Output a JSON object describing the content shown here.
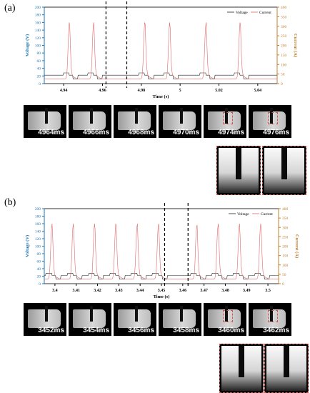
{
  "panels": [
    {
      "label": "(a)",
      "chart_data": {
        "type": "line",
        "xlabel": "Time (s)",
        "ylabel_left": "Voltage (V)",
        "ylabel_right": "Current (A)",
        "xlim": [
          4.93,
          5.05
        ],
        "ylim_left": [
          0,
          200
        ],
        "ylim_right": [
          0,
          400
        ],
        "x_ticks": [
          "4.94",
          "4.96",
          "4.98",
          "5",
          "5.02",
          "5.04"
        ],
        "y_left_ticks": [
          "0",
          "20",
          "40",
          "60",
          "80",
          "100",
          "120",
          "140",
          "160",
          "180",
          "200"
        ],
        "y_right_ticks": [
          "0",
          "50",
          "100",
          "150",
          "200",
          "250",
          "300",
          "350",
          "400"
        ],
        "legend": [
          "Voltage",
          "Current"
        ],
        "legend_position": "top-right",
        "marker_lines": [
          4.9618,
          4.9725
        ],
        "peaks": [
          4.9428,
          4.9553,
          4.9817,
          4.9945,
          5.0132,
          5.0308
        ],
        "colors": {
          "voltage": "#222222",
          "current": "#e06666",
          "left_axis": "#1f77b4",
          "right_axis": "#c08030"
        }
      },
      "frames": [
        "4964ms",
        "4966ms",
        "4968ms",
        "4970ms",
        "4974ms",
        "4976ms"
      ]
    },
    {
      "label": "(b)",
      "chart_data": {
        "type": "line",
        "xlabel": "Time (s)",
        "ylabel_left": "Voltage (V)",
        "ylabel_right": "Current (A)",
        "xlim": [
          3.395,
          3.505
        ],
        "ylim_left": [
          0,
          200
        ],
        "ylim_right": [
          0,
          400
        ],
        "x_ticks": [
          "3.4",
          "3.41",
          "3.42",
          "3.43",
          "3.44",
          "3.45",
          "3.46",
          "3.47",
          "3.48",
          "3.49",
          "3.5"
        ],
        "y_left_ticks": [
          "0",
          "20",
          "40",
          "60",
          "80",
          "100",
          "120",
          "140",
          "160",
          "180",
          "200"
        ],
        "y_right_ticks": [
          "0",
          "50",
          "100",
          "150",
          "200",
          "250",
          "300",
          "350",
          "400"
        ],
        "legend": [
          "Voltage",
          "Current"
        ],
        "legend_position": "top-right",
        "marker_lines": [
          3.4515,
          3.4625
        ],
        "peaks": [
          3.3985,
          3.4085,
          3.4185,
          3.4285,
          3.4385,
          3.4485,
          3.4665,
          3.4765,
          3.4865,
          3.4965
        ],
        "colors": {
          "voltage": "#222222",
          "current": "#e06666",
          "left_axis": "#1f77b4",
          "right_axis": "#c08030"
        }
      },
      "frames": [
        "3452ms",
        "3454ms",
        "3456ms",
        "3458ms",
        "3460ms",
        "3462ms"
      ]
    }
  ]
}
